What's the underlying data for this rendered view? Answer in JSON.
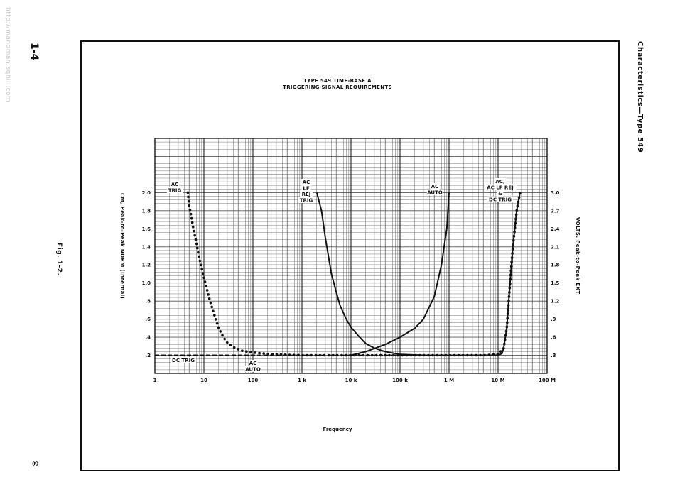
{
  "page": {
    "side_url": "http://manoman.sqhill.com",
    "page_number": "1-4",
    "figure_caption": "Fig. 1-2.",
    "publisher_mark": "®",
    "section_header": "Characteristics—Type 549"
  },
  "chart_data": {
    "type": "line",
    "title": [
      "TYPE 549 TIME-BASE A",
      "TRIGGERING SIGNAL REQUIREMENTS"
    ],
    "xlabel": "Frequency",
    "ylabel_left": "CM, Peak-to-Peak NORM (Internal)",
    "ylabel_right": "VOLTS, Peak-to-Peak EXT",
    "x_scale": "log",
    "xlim": [
      1,
      100000000
    ],
    "x_ticks": [
      {
        "value": 1,
        "label": "1"
      },
      {
        "value": 10,
        "label": "10"
      },
      {
        "value": 100,
        "label": "100"
      },
      {
        "value": 1000,
        "label": "1 k"
      },
      {
        "value": 10000,
        "label": "10 k"
      },
      {
        "value": 100000,
        "label": "100 k"
      },
      {
        "value": 1000000,
        "label": "1 M"
      },
      {
        "value": 10000000,
        "label": "10 M"
      },
      {
        "value": 100000000,
        "label": "100 M"
      }
    ],
    "ylim": [
      0,
      2.6
    ],
    "y_ticks_left": [
      {
        "value": 0.2,
        "label": ".2"
      },
      {
        "value": 0.4,
        "label": ".4"
      },
      {
        "value": 0.6,
        "label": ".6"
      },
      {
        "value": 0.8,
        "label": ".8"
      },
      {
        "value": 1.0,
        "label": "1.0"
      },
      {
        "value": 1.2,
        "label": "1.2"
      },
      {
        "value": 1.4,
        "label": "1.4"
      },
      {
        "value": 1.6,
        "label": "1.6"
      },
      {
        "value": 1.8,
        "label": "1.8"
      },
      {
        "value": 2.0,
        "label": "2.0"
      }
    ],
    "y_ticks_right": [
      {
        "value": 0.2,
        "label": ".3"
      },
      {
        "value": 0.4,
        "label": ".6"
      },
      {
        "value": 0.6,
        "label": ".9"
      },
      {
        "value": 0.8,
        "label": "1.2"
      },
      {
        "value": 1.0,
        "label": "1.5"
      },
      {
        "value": 1.2,
        "label": "1.8"
      },
      {
        "value": 1.4,
        "label": "2.1"
      },
      {
        "value": 1.6,
        "label": "2.4"
      },
      {
        "value": 1.8,
        "label": "2.7"
      },
      {
        "value": 2.0,
        "label": "3.0"
      }
    ],
    "grid": true,
    "series": [
      {
        "name": "AC TRIG",
        "style": "dotted",
        "label_lines": [
          "AC",
          "TRIG"
        ],
        "points": [
          [
            4.7,
            2.0
          ],
          [
            5,
            1.86
          ],
          [
            5.5,
            1.74
          ],
          [
            6,
            1.62
          ],
          [
            7,
            1.45
          ],
          [
            8,
            1.28
          ],
          [
            10,
            1.06
          ],
          [
            13,
            0.82
          ],
          [
            16,
            0.66
          ],
          [
            20,
            0.5
          ],
          [
            25,
            0.4
          ],
          [
            30,
            0.34
          ],
          [
            40,
            0.29
          ],
          [
            60,
            0.25
          ],
          [
            100,
            0.23
          ],
          [
            200,
            0.215
          ],
          [
            500,
            0.205
          ],
          [
            1000,
            0.2
          ],
          [
            10000,
            0.2
          ],
          [
            100000,
            0.2
          ],
          [
            1000000,
            0.2
          ],
          [
            5000000,
            0.2
          ],
          [
            10000000,
            0.21
          ],
          [
            13000000,
            0.28
          ],
          [
            15000000,
            0.5
          ],
          [
            17000000,
            0.9
          ],
          [
            20000000,
            1.4
          ],
          [
            24000000,
            1.8
          ],
          [
            28000000,
            2.0
          ]
        ]
      },
      {
        "name": "AC LF REJ TRIG",
        "style": "solid",
        "label_lines": [
          "AC",
          "LF",
          "REJ",
          "TRIG"
        ],
        "points": [
          [
            2000,
            2.0
          ],
          [
            2500,
            1.8
          ],
          [
            3000,
            1.5
          ],
          [
            4000,
            1.1
          ],
          [
            5000,
            0.9
          ],
          [
            6000,
            0.75
          ],
          [
            8000,
            0.6
          ],
          [
            10000,
            0.51
          ],
          [
            15000,
            0.4
          ],
          [
            20000,
            0.33
          ],
          [
            30000,
            0.28
          ],
          [
            50000,
            0.24
          ],
          [
            100000,
            0.21
          ],
          [
            300000,
            0.2
          ],
          [
            1000000,
            0.2
          ]
        ]
      },
      {
        "name": "AC AUTO",
        "style": "solid",
        "label_lines": [
          "AC",
          "AUTO"
        ],
        "points": [
          [
            10000,
            0.2
          ],
          [
            20000,
            0.24
          ],
          [
            50000,
            0.32
          ],
          [
            100000,
            0.4
          ],
          [
            200000,
            0.5
          ],
          [
            300000,
            0.6
          ],
          [
            500000,
            0.85
          ],
          [
            700000,
            1.2
          ],
          [
            900000,
            1.6
          ],
          [
            1000000,
            2.0
          ]
        ]
      },
      {
        "name": "AC, AC LF REJ & DC TRIG",
        "style": "solid",
        "label_lines": [
          "AC,",
          "AC LF REJ",
          "&",
          "DC TRIG"
        ],
        "points": [
          [
            100000,
            0.2
          ],
          [
            1000000,
            0.2
          ],
          [
            10000000,
            0.2
          ],
          [
            12000000,
            0.22
          ],
          [
            13000000,
            0.28
          ],
          [
            15000000,
            0.5
          ],
          [
            17000000,
            0.9
          ],
          [
            20000000,
            1.4
          ],
          [
            24000000,
            1.8
          ],
          [
            28000000,
            2.0
          ]
        ]
      },
      {
        "name": "DC TRIG",
        "style": "dashed",
        "label_lines": [
          "DC TRIG"
        ],
        "points": [
          [
            1,
            0.2
          ],
          [
            1000000,
            0.2
          ]
        ]
      },
      {
        "name": "AC AUTO (DC baseline)",
        "style": "dashed",
        "label_lines": [
          "AC",
          "AUTO"
        ],
        "points": [
          [
            1,
            0.2
          ],
          [
            100,
            0.2
          ]
        ]
      }
    ]
  }
}
